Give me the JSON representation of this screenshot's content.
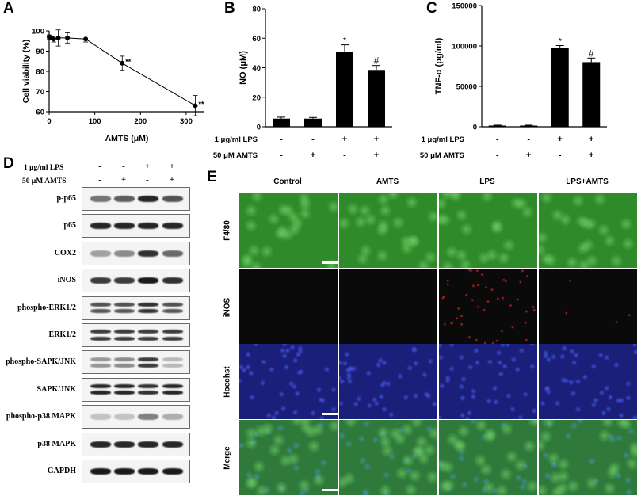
{
  "panels": {
    "a": "A",
    "b": "B",
    "c": "C",
    "d": "D",
    "e": "E"
  },
  "chart_data": [
    {
      "panel": "A",
      "type": "line",
      "xlabel": "AMTS (μM)",
      "ylabel": "Cell viability (%)",
      "xlim": [
        0,
        340
      ],
      "ylim": [
        60,
        100
      ],
      "xticks": [
        "0",
        "100",
        "200",
        "300"
      ],
      "yticks": [
        "60",
        "70",
        "80",
        "90",
        "100"
      ],
      "x": [
        0,
        5,
        10,
        20,
        40,
        80,
        160,
        320
      ],
      "y": [
        97,
        96.5,
        96,
        96.5,
        96.5,
        96,
        84,
        63
      ],
      "err": [
        1,
        1,
        1.5,
        4,
        2.5,
        1.5,
        3.5,
        5
      ],
      "annotations": [
        {
          "x": 160,
          "text": "**"
        },
        {
          "x": 320,
          "text": "**"
        }
      ]
    },
    {
      "panel": "B",
      "type": "bar",
      "ylabel": "NO (μM)",
      "ylim": [
        0,
        80
      ],
      "yticks": [
        "0",
        "20",
        "40",
        "60",
        "80"
      ],
      "values": [
        5.5,
        5.5,
        51,
        38.5
      ],
      "err": [
        1,
        0.8,
        4.5,
        3
      ],
      "marks": [
        "",
        "",
        "*",
        "#"
      ],
      "conditions": [
        {
          "label": "1 μg/ml LPS",
          "signs": [
            "-",
            "-",
            "+",
            "+"
          ]
        },
        {
          "label": "50 μM AMTS",
          "signs": [
            "-",
            "+",
            "-",
            "+"
          ]
        }
      ]
    },
    {
      "panel": "C",
      "type": "bar",
      "ylabel": "TNF-α (pg/ml)",
      "ylim": [
        0,
        150000
      ],
      "yticks": [
        "0",
        "50000",
        "100000",
        "150000"
      ],
      "values": [
        1500,
        1500,
        98000,
        80000
      ],
      "err": [
        500,
        500,
        2500,
        5000
      ],
      "marks": [
        "",
        "",
        "*",
        "#"
      ],
      "conditions": [
        {
          "label": "1 μg/ml LPS",
          "signs": [
            "-",
            "-",
            "+",
            "+"
          ]
        },
        {
          "label": "50 μM AMTS",
          "signs": [
            "-",
            "+",
            "-",
            "+"
          ]
        }
      ]
    }
  ],
  "western": {
    "conditions": [
      {
        "label": "1 μg/ml LPS",
        "signs": [
          "-",
          "-",
          "+",
          "+"
        ]
      },
      {
        "label": "50 μM AMTS",
        "signs": [
          "-",
          "+",
          "-",
          "+"
        ]
      }
    ],
    "blots": [
      {
        "label": "p-p65",
        "bands": 1,
        "intensity": [
          0.55,
          0.65,
          0.9,
          0.7
        ]
      },
      {
        "label": "p65",
        "bands": 1,
        "intensity": [
          0.9,
          0.9,
          0.9,
          0.9
        ]
      },
      {
        "label": "COX2",
        "bands": 1,
        "intensity": [
          0.35,
          0.45,
          0.85,
          0.6
        ]
      },
      {
        "label": "iNOS",
        "bands": 1,
        "intensity": [
          0.8,
          0.8,
          0.95,
          0.85
        ]
      },
      {
        "label": "phospho-ERK1/2",
        "bands": 2,
        "intensity": [
          0.7,
          0.7,
          0.85,
          0.7
        ]
      },
      {
        "label": "ERK1/2",
        "bands": 2,
        "intensity": [
          0.8,
          0.8,
          0.8,
          0.8
        ]
      },
      {
        "label": "phospho-SAPK/JNK",
        "bands": 2,
        "intensity": [
          0.4,
          0.45,
          0.8,
          0.25
        ]
      },
      {
        "label": "SAPK/JNK",
        "bands": 2,
        "intensity": [
          0.9,
          0.9,
          0.85,
          0.9
        ]
      },
      {
        "label": "phospho-p38 MAPK",
        "bands": 1,
        "intensity": [
          0.2,
          0.2,
          0.5,
          0.3
        ]
      },
      {
        "label": "p38 MAPK",
        "bands": 1,
        "intensity": [
          0.9,
          0.9,
          0.9,
          0.9
        ]
      },
      {
        "label": "GAPDH",
        "bands": 1,
        "intensity": [
          0.95,
          0.95,
          0.95,
          0.95
        ]
      }
    ]
  },
  "microscopy": {
    "columns": [
      "Control",
      "AMTS",
      "LPS",
      "LPS+AMTS"
    ],
    "rows": [
      {
        "label": "F4/80",
        "color": "#2f8a2a"
      },
      {
        "label": "iNOS",
        "color": "#0a0a0a"
      },
      {
        "label": "Hoechst",
        "color": "#1a1f7a"
      },
      {
        "label": "Merge",
        "color": "#2f7a3a"
      }
    ]
  }
}
